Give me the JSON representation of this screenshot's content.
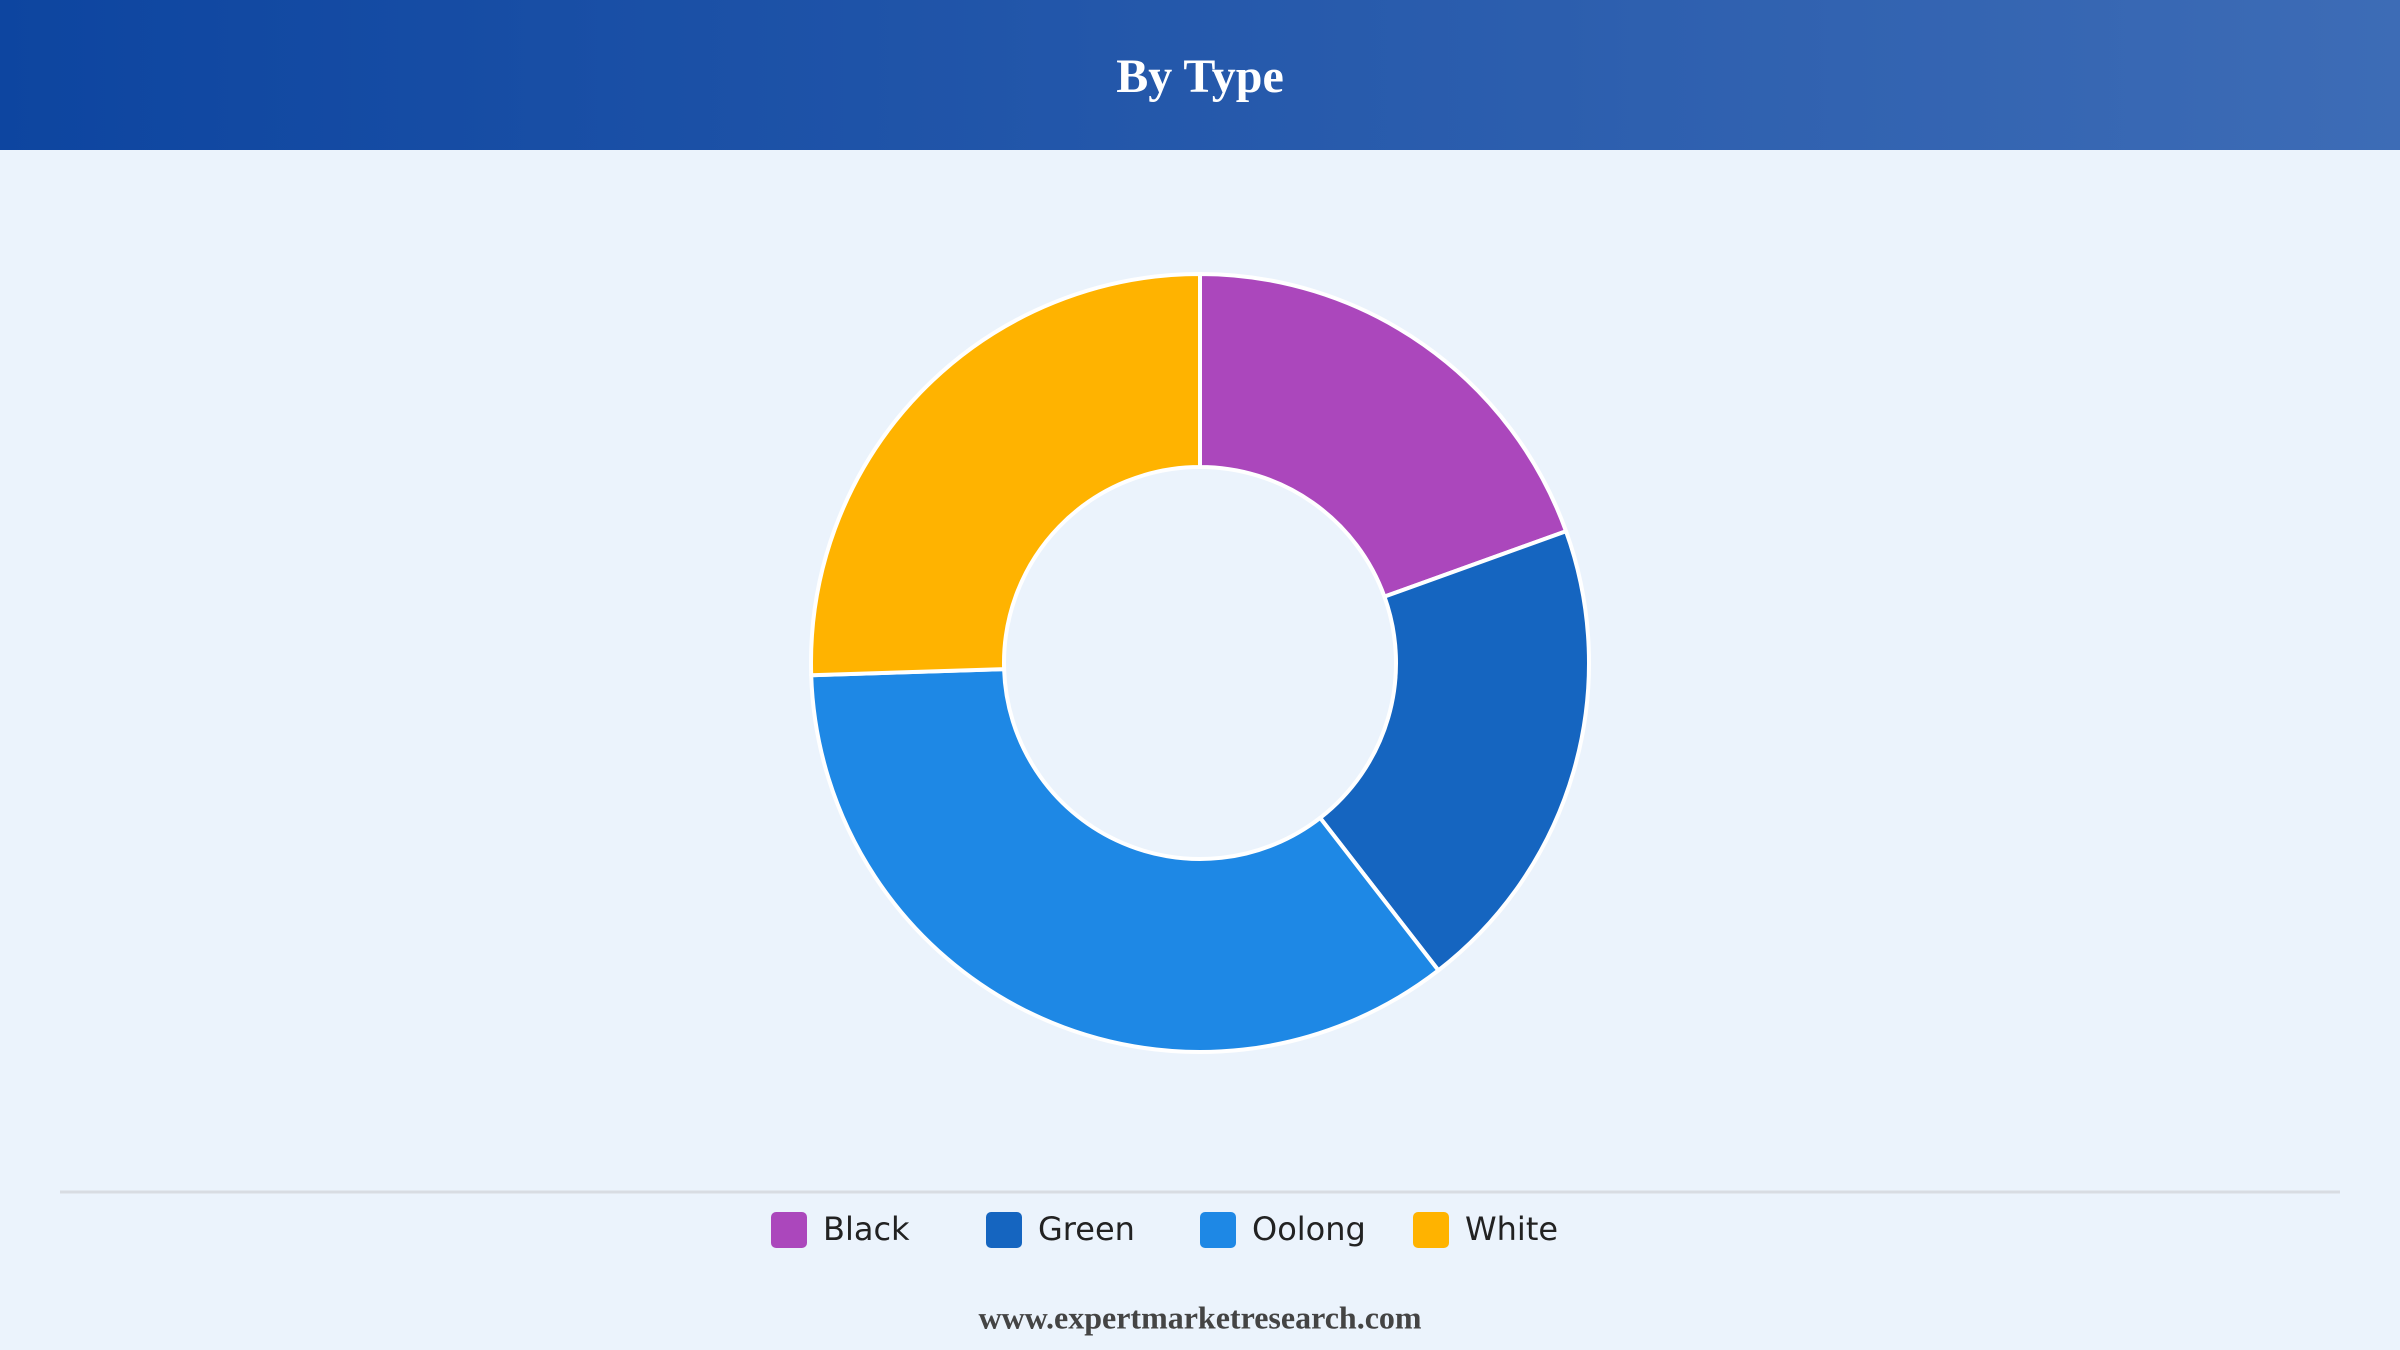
{
  "chart_data": {
    "type": "donut",
    "title": "By Type",
    "categories": [
      "Black",
      "Green",
      "Oolong",
      "White"
    ],
    "values": [
      19.5,
      20,
      35,
      25.5
    ],
    "colors": [
      "#ab47bc",
      "#1565c0",
      "#1e88e5",
      "#ffb300"
    ],
    "legend": "bottom",
    "source": "www.expertmarketresearch.com"
  }
}
